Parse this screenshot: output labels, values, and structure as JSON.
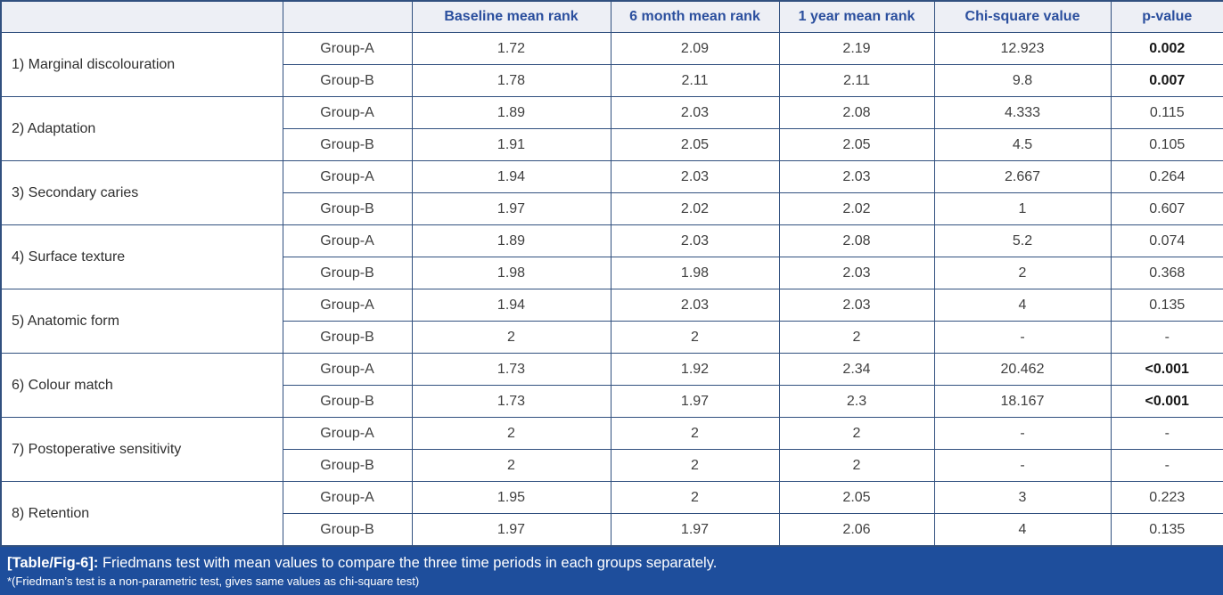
{
  "colors": {
    "border": "#31507f",
    "header_bg": "#edeff5",
    "header_text": "#2b4f9e",
    "body_text": "#3f3f3f",
    "caption_bg": "#1e4e9c",
    "caption_text": "#ffffff"
  },
  "table": {
    "columns": [
      "",
      "",
      "Baseline mean rank",
      "6 month mean rank",
      "1 year mean rank",
      "Chi-square value",
      "p-value"
    ],
    "rows": [
      {
        "criterion": "1) Marginal discolouration",
        "groups": [
          {
            "name": "Group-A",
            "baseline": "1.72",
            "six_month": "2.09",
            "one_year": "2.19",
            "chi_square": "12.923",
            "p_value": "0.002",
            "p_bold": true
          },
          {
            "name": "Group-B",
            "baseline": "1.78",
            "six_month": "2.11",
            "one_year": "2.11",
            "chi_square": "9.8",
            "p_value": "0.007",
            "p_bold": true
          }
        ]
      },
      {
        "criterion": "2) Adaptation",
        "groups": [
          {
            "name": "Group-A",
            "baseline": "1.89",
            "six_month": "2.03",
            "one_year": "2.08",
            "chi_square": "4.333",
            "p_value": "0.115",
            "p_bold": false
          },
          {
            "name": "Group-B",
            "baseline": "1.91",
            "six_month": "2.05",
            "one_year": "2.05",
            "chi_square": "4.5",
            "p_value": "0.105",
            "p_bold": false
          }
        ]
      },
      {
        "criterion": "3) Secondary caries",
        "groups": [
          {
            "name": "Group-A",
            "baseline": "1.94",
            "six_month": "2.03",
            "one_year": "2.03",
            "chi_square": "2.667",
            "p_value": "0.264",
            "p_bold": false
          },
          {
            "name": "Group-B",
            "baseline": "1.97",
            "six_month": "2.02",
            "one_year": "2.02",
            "chi_square": "1",
            "p_value": "0.607",
            "p_bold": false
          }
        ]
      },
      {
        "criterion": "4) Surface texture",
        "groups": [
          {
            "name": "Group-A",
            "baseline": "1.89",
            "six_month": "2.03",
            "one_year": "2.08",
            "chi_square": "5.2",
            "p_value": "0.074",
            "p_bold": false
          },
          {
            "name": "Group-B",
            "baseline": "1.98",
            "six_month": "1.98",
            "one_year": "2.03",
            "chi_square": "2",
            "p_value": "0.368",
            "p_bold": false
          }
        ]
      },
      {
        "criterion": "5) Anatomic form",
        "groups": [
          {
            "name": "Group-A",
            "baseline": "1.94",
            "six_month": "2.03",
            "one_year": "2.03",
            "chi_square": "4",
            "p_value": "0.135",
            "p_bold": false
          },
          {
            "name": "Group-B",
            "baseline": "2",
            "six_month": "2",
            "one_year": "2",
            "chi_square": "-",
            "p_value": "-",
            "p_bold": false
          }
        ]
      },
      {
        "criterion": "6) Colour match",
        "groups": [
          {
            "name": "Group-A",
            "baseline": "1.73",
            "six_month": "1.92",
            "one_year": "2.34",
            "chi_square": "20.462",
            "p_value": "<0.001",
            "p_bold": true
          },
          {
            "name": "Group-B",
            "baseline": "1.73",
            "six_month": "1.97",
            "one_year": "2.3",
            "chi_square": "18.167",
            "p_value": "<0.001",
            "p_bold": true
          }
        ]
      },
      {
        "criterion": "7) Postoperative sensitivity",
        "groups": [
          {
            "name": "Group-A",
            "baseline": "2",
            "six_month": "2",
            "one_year": "2",
            "chi_square": "-",
            "p_value": "-",
            "p_bold": false
          },
          {
            "name": "Group-B",
            "baseline": "2",
            "six_month": "2",
            "one_year": "2",
            "chi_square": "-",
            "p_value": "-",
            "p_bold": false
          }
        ]
      },
      {
        "criterion": "8) Retention",
        "groups": [
          {
            "name": "Group-A",
            "baseline": "1.95",
            "six_month": "2",
            "one_year": "2.05",
            "chi_square": "3",
            "p_value": "0.223",
            "p_bold": false
          },
          {
            "name": "Group-B",
            "baseline": "1.97",
            "six_month": "1.97",
            "one_year": "2.06",
            "chi_square": "4",
            "p_value": "0.135",
            "p_bold": false
          }
        ]
      }
    ]
  },
  "caption": {
    "label": "[Table/Fig-6]:",
    "text": " Friedmans test with mean values to compare the three time periods in each groups separately.",
    "footnote": "*(Friedman’s test is a non-parametric test, gives same values as chi-square test)"
  }
}
